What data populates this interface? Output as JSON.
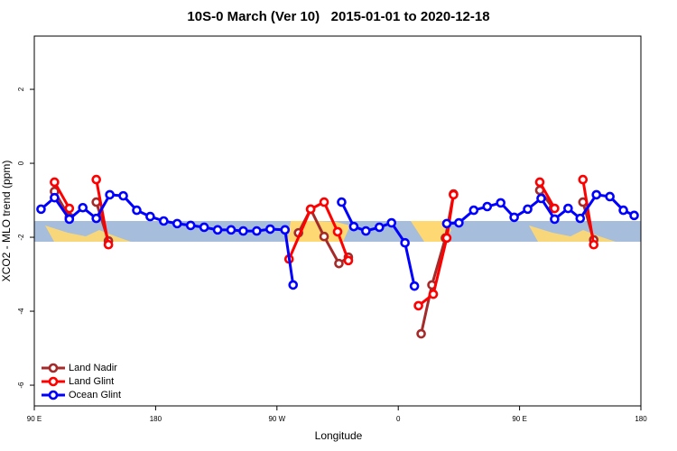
{
  "chart_data": {
    "type": "line",
    "title": "10S-0 March (Ver 10)   2015-01-01 to 2020-12-18",
    "x_label": "Longitude",
    "y_label": "XCO2 - MLO trend (ppm)",
    "xlim": [
      90,
      540
    ],
    "ylim": [
      -6.56,
      3.44
    ],
    "xticks": [
      {
        "value": 90,
        "label": "90 E"
      },
      180,
      {
        "value": 270,
        "label": "90 W"
      },
      {
        "value": 360,
        "label": "0"
      },
      {
        "value": 450,
        "label": "90 E"
      },
      {
        "value": 540,
        "label": "180"
      }
    ],
    "yticks": [
      -6,
      -4,
      -2,
      0,
      2
    ],
    "legend": "bottom-left",
    "series": [
      {
        "name": "Land Nadir",
        "color": "#a52a2a",
        "x": [
          105,
          116,
          null,
          136,
          145,
          null,
          286,
          295,
          305,
          316,
          323,
          null,
          377,
          385,
          395,
          401,
          null,
          465,
          475,
          null,
          497,
          505
        ],
        "values": [
          -0.76,
          -1.46,
          null,
          -1.05,
          -2.1,
          null,
          -1.88,
          -1.24,
          -1.98,
          -2.71,
          -2.54,
          null,
          -4.61,
          -3.29,
          -2.02,
          -0.83,
          null,
          -0.73,
          -1.22,
          null,
          -1.05,
          -2.07
        ]
      },
      {
        "name": "Land Glint",
        "color": "#ff0000",
        "x": [
          105,
          116,
          null,
          136,
          145,
          null,
          279,
          295,
          305,
          315,
          323,
          null,
          375,
          386,
          396,
          401,
          null,
          465,
          476,
          null,
          497,
          505
        ],
        "values": [
          -0.51,
          -1.22,
          null,
          -0.44,
          -2.2,
          null,
          -2.59,
          -1.24,
          -1.05,
          -1.85,
          -2.63,
          null,
          -3.85,
          -3.54,
          -2.02,
          -0.85,
          null,
          -0.51,
          -1.22,
          null,
          -0.44,
          -2.2
        ]
      },
      {
        "name": "Ocean Glint",
        "color": "#0000ff",
        "x": [
          95,
          105,
          116,
          126,
          136,
          146,
          156,
          166,
          176,
          186,
          196,
          206,
          216,
          226,
          236,
          245,
          255,
          265,
          276,
          282,
          null,
          318,
          327,
          336,
          346,
          355,
          365,
          372,
          null,
          396,
          405,
          416,
          426,
          436,
          446,
          456,
          466,
          476,
          486,
          495,
          507,
          517,
          527,
          535
        ],
        "values": [
          -1.24,
          -0.93,
          -1.51,
          -1.2,
          -1.49,
          -0.85,
          -0.88,
          -1.27,
          -1.44,
          -1.56,
          -1.63,
          -1.68,
          -1.73,
          -1.8,
          -1.8,
          -1.83,
          -1.83,
          -1.78,
          -1.8,
          -3.29,
          null,
          -1.05,
          -1.71,
          -1.83,
          -1.73,
          -1.61,
          -2.15,
          -3.32,
          null,
          -1.63,
          -1.61,
          -1.27,
          -1.17,
          -1.07,
          -1.46,
          -1.24,
          -0.95,
          -1.51,
          -1.22,
          -1.49,
          -0.85,
          -0.9,
          -1.27,
          -1.41
        ]
      }
    ]
  }
}
